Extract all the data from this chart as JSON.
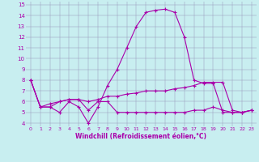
{
  "xlabel": "Windchill (Refroidissement éolien,°C)",
  "background_color": "#c8eef0",
  "line_color": "#aa00aa",
  "xlim": [
    -0.5,
    23.5
  ],
  "ylim": [
    3.7,
    15.3
  ],
  "xticks": [
    0,
    1,
    2,
    3,
    4,
    5,
    6,
    7,
    8,
    9,
    10,
    11,
    12,
    13,
    14,
    15,
    16,
    17,
    18,
    19,
    20,
    21,
    22,
    23
  ],
  "yticks": [
    4,
    5,
    6,
    7,
    8,
    9,
    10,
    11,
    12,
    13,
    14,
    15
  ],
  "line1": [
    8.0,
    5.5,
    5.5,
    5.0,
    6.0,
    5.5,
    4.0,
    5.5,
    7.5,
    9.0,
    11.0,
    13.0,
    14.3,
    14.5,
    14.6,
    14.3,
    12.0,
    8.0,
    7.7,
    7.7,
    5.0,
    5.0,
    5.0,
    5.2
  ],
  "line2": [
    8.0,
    5.5,
    5.5,
    6.0,
    6.2,
    6.2,
    5.2,
    6.0,
    6.0,
    5.0,
    5.0,
    5.0,
    5.0,
    5.0,
    5.0,
    5.0,
    5.0,
    5.2,
    5.2,
    5.5,
    5.2,
    5.0,
    5.0,
    5.2
  ],
  "line3": [
    8.0,
    5.5,
    5.8,
    6.0,
    6.2,
    6.2,
    6.0,
    6.2,
    6.5,
    6.5,
    6.7,
    6.8,
    7.0,
    7.0,
    7.0,
    7.2,
    7.3,
    7.5,
    7.8,
    7.8,
    7.8,
    5.2,
    5.0,
    5.2
  ]
}
